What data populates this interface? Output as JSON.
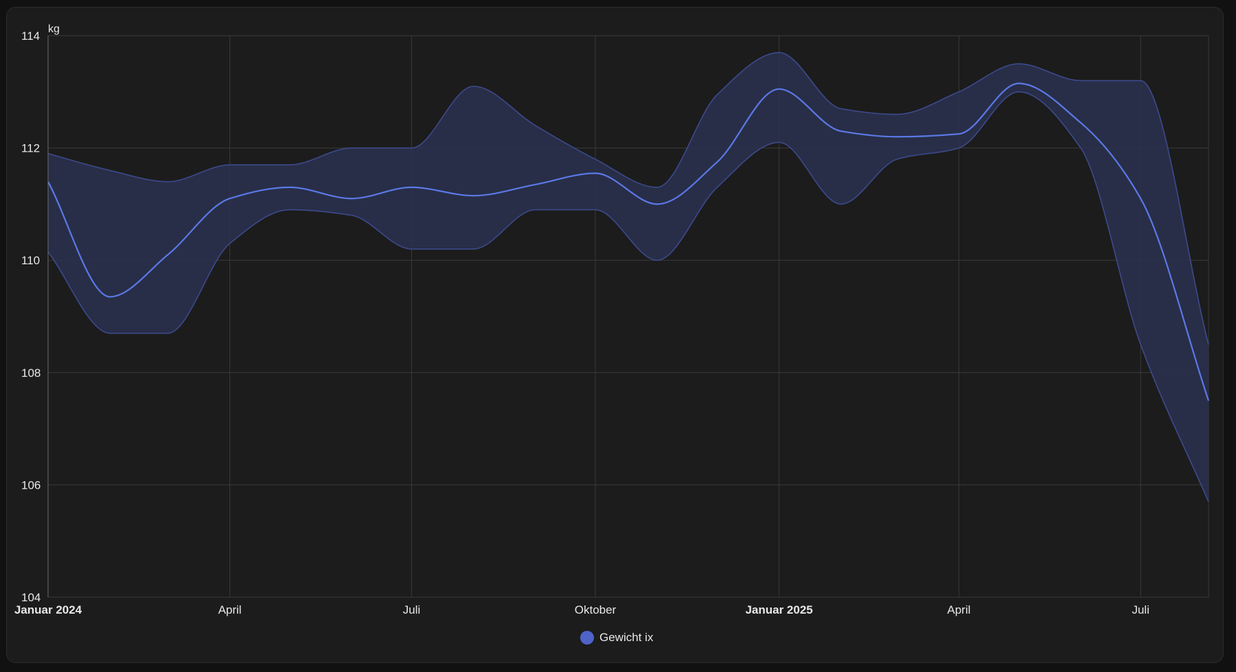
{
  "chart_data": {
    "type": "line",
    "unit": "kg",
    "ylim": [
      104,
      114
    ],
    "y_ticks": [
      104,
      106,
      108,
      110,
      112,
      114
    ],
    "x_tick_labels": [
      {
        "date": "2024-01-01",
        "label": "Januar 2024",
        "major": true
      },
      {
        "date": "2024-04-01",
        "label": "April",
        "major": false
      },
      {
        "date": "2024-07-01",
        "label": "Juli",
        "major": false
      },
      {
        "date": "2024-10-01",
        "label": "Oktober",
        "major": false
      },
      {
        "date": "2025-01-01",
        "label": "Januar 2025",
        "major": true
      },
      {
        "date": "2025-04-01",
        "label": "April",
        "major": false
      },
      {
        "date": "2025-07-01",
        "label": "Juli",
        "major": false
      }
    ],
    "xlim": [
      "2024-01-01",
      "2025-08-04"
    ],
    "grid": true,
    "legend_position": "bottom",
    "series": [
      {
        "name": "Gewicht ix",
        "color": "#5b79e6",
        "band_color": "#2a3150",
        "band_edge_color": "#3c4a8c",
        "mean": [
          [
            "2024-01-01",
            111.4
          ],
          [
            "2024-02-01",
            109.35
          ],
          [
            "2024-03-01",
            110.1
          ],
          [
            "2024-04-01",
            111.1
          ],
          [
            "2024-05-01",
            111.3
          ],
          [
            "2024-06-01",
            111.1
          ],
          [
            "2024-07-01",
            111.3
          ],
          [
            "2024-08-01",
            111.15
          ],
          [
            "2024-09-01",
            111.35
          ],
          [
            "2024-10-01",
            111.55
          ],
          [
            "2024-11-01",
            111.0
          ],
          [
            "2024-12-01",
            111.75
          ],
          [
            "2025-01-01",
            113.05
          ],
          [
            "2025-02-01",
            112.3
          ],
          [
            "2025-03-01",
            112.2
          ],
          [
            "2025-04-01",
            112.25
          ],
          [
            "2025-05-01",
            113.15
          ],
          [
            "2025-06-01",
            112.45
          ],
          [
            "2025-07-01",
            111.1
          ],
          [
            "2025-08-04",
            107.5
          ]
        ],
        "min": [
          [
            "2024-01-01",
            110.15
          ],
          [
            "2024-02-01",
            108.7
          ],
          [
            "2024-03-01",
            108.7
          ],
          [
            "2024-04-01",
            110.3
          ],
          [
            "2024-05-01",
            110.9
          ],
          [
            "2024-06-01",
            110.8
          ],
          [
            "2024-07-01",
            110.2
          ],
          [
            "2024-08-01",
            110.2
          ],
          [
            "2024-09-01",
            110.9
          ],
          [
            "2024-10-01",
            110.9
          ],
          [
            "2024-11-01",
            110.0
          ],
          [
            "2024-12-01",
            111.3
          ],
          [
            "2025-01-01",
            112.1
          ],
          [
            "2025-02-01",
            111.0
          ],
          [
            "2025-03-01",
            111.8
          ],
          [
            "2025-04-01",
            112.0
          ],
          [
            "2025-05-01",
            113.0
          ],
          [
            "2025-06-01",
            112.0
          ],
          [
            "2025-07-01",
            108.5
          ],
          [
            "2025-08-04",
            105.7
          ]
        ],
        "max": [
          [
            "2024-01-01",
            111.9
          ],
          [
            "2024-02-01",
            111.6
          ],
          [
            "2024-03-01",
            111.4
          ],
          [
            "2024-04-01",
            111.7
          ],
          [
            "2024-05-01",
            111.7
          ],
          [
            "2024-06-01",
            112.0
          ],
          [
            "2024-07-01",
            112.0
          ],
          [
            "2024-08-01",
            113.1
          ],
          [
            "2024-09-01",
            112.4
          ],
          [
            "2024-10-01",
            111.8
          ],
          [
            "2024-11-01",
            111.3
          ],
          [
            "2024-12-01",
            112.95
          ],
          [
            "2025-01-01",
            113.7
          ],
          [
            "2025-02-01",
            112.7
          ],
          [
            "2025-03-01",
            112.6
          ],
          [
            "2025-04-01",
            113.0
          ],
          [
            "2025-05-01",
            113.5
          ],
          [
            "2025-06-01",
            113.2
          ],
          [
            "2025-07-01",
            113.2
          ],
          [
            "2025-08-04",
            108.5
          ]
        ]
      }
    ]
  },
  "legend": {
    "label": "Gewicht ix",
    "color": "#4f63c9"
  }
}
